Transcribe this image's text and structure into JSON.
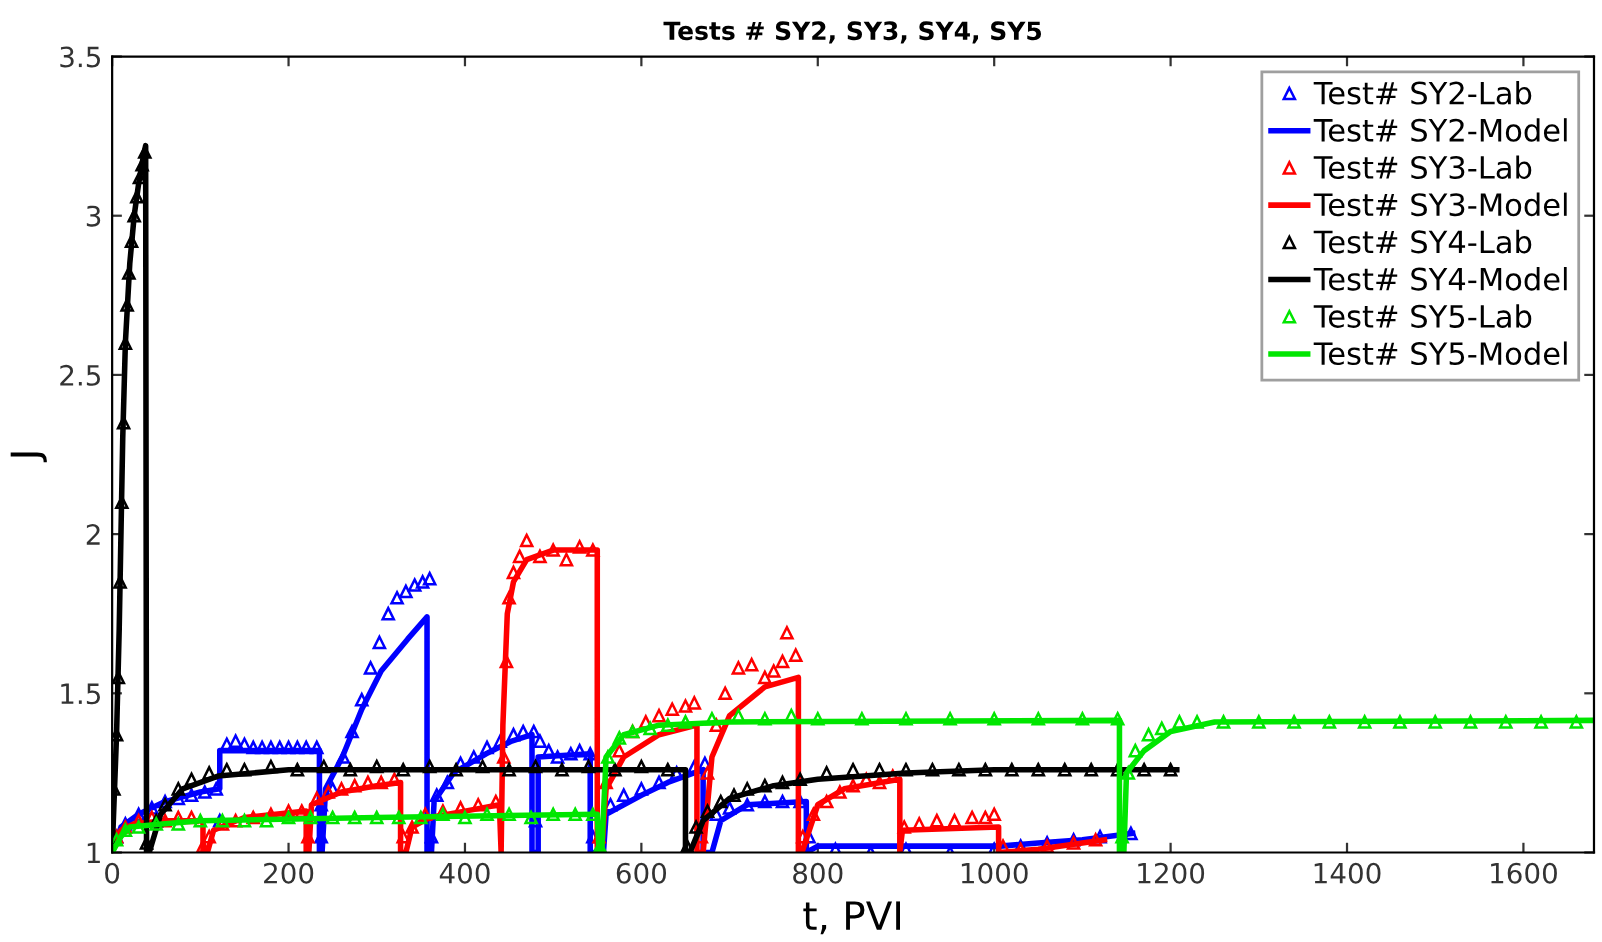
{
  "chart_data": {
    "type": "line",
    "title": "Tests # SY2, SY3, SY4, SY5",
    "xlabel": "t, PVI",
    "ylabel": "J",
    "xlim": [
      0,
      1680
    ],
    "xticks": [
      0,
      200,
      400,
      600,
      800,
      1000,
      1200,
      1400,
      1600
    ],
    "ylim": [
      1,
      3.5
    ],
    "yticks": [
      1,
      1.5,
      2,
      2.5,
      3,
      3.5
    ],
    "grid": false,
    "legend": "top right",
    "series": [
      {
        "name": "Test# SY2-Lab",
        "type": "scatter",
        "marker": "triangle",
        "color": "#0000ff",
        "x": [
          5,
          15,
          30,
          45,
          60,
          75,
          90,
          105,
          118,
          122,
          130,
          140,
          150,
          160,
          170,
          180,
          190,
          200,
          210,
          220,
          232,
          237,
          237,
          250,
          262,
          272,
          283,
          293,
          303,
          313,
          323,
          333,
          343,
          352,
          360,
          362,
          368,
          380,
          395,
          410,
          425,
          440,
          455,
          466,
          478,
          480,
          485,
          495,
          505,
          520,
          530,
          542,
          545,
          565,
          580,
          600,
          620,
          640,
          660,
          672,
          685,
          700,
          720,
          740,
          760,
          780,
          790,
          820,
          860,
          900,
          950,
          1000,
          1030,
          1060,
          1090,
          1120,
          1155
        ],
        "values": [
          1.05,
          1.09,
          1.12,
          1.14,
          1.16,
          1.17,
          1.18,
          1.19,
          1.2,
          1.1,
          1.34,
          1.35,
          1.34,
          1.33,
          1.33,
          1.33,
          1.33,
          1.33,
          1.33,
          1.33,
          1.33,
          1.05,
          1.15,
          1.2,
          1.3,
          1.38,
          1.48,
          1.58,
          1.66,
          1.75,
          1.8,
          1.82,
          1.84,
          1.85,
          1.86,
          1.05,
          1.18,
          1.22,
          1.28,
          1.3,
          1.33,
          1.35,
          1.37,
          1.38,
          1.38,
          1.1,
          1.35,
          1.32,
          1.3,
          1.31,
          1.32,
          1.31,
          1.05,
          1.15,
          1.18,
          1.2,
          1.22,
          1.25,
          1.27,
          1.28,
          1.12,
          1.14,
          1.15,
          1.16,
          1.16,
          1.16,
          1.05,
          1.01,
          1.0,
          1.01,
          1.0,
          1.01,
          1.02,
          1.03,
          1.04,
          1.05,
          1.06
        ]
      },
      {
        "name": "Test# SY2-Model",
        "marker": "none",
        "color": "#0000ff",
        "x": [
          0,
          10,
          30,
          60,
          100,
          122,
          122,
          235,
          235,
          238,
          242,
          261,
          283,
          305,
          335,
          357,
          357,
          362,
          365,
          387,
          424,
          453,
          476,
          476,
          483,
          483,
          542,
          542,
          557,
          560,
          600,
          630,
          670,
          670,
          680,
          690,
          720,
          787,
          787,
          800,
          1007,
          1050,
          1100,
          1157
        ],
        "values": [
          1.0,
          1.08,
          1.12,
          1.16,
          1.19,
          1.2,
          1.32,
          1.32,
          1.0,
          1.0,
          1.2,
          1.3,
          1.45,
          1.57,
          1.67,
          1.74,
          1.0,
          1.0,
          1.16,
          1.25,
          1.31,
          1.35,
          1.37,
          1.0,
          1.0,
          1.3,
          1.31,
          1.0,
          1.0,
          1.12,
          1.18,
          1.22,
          1.26,
          1.0,
          1.0,
          1.1,
          1.15,
          1.16,
          1.0,
          1.02,
          1.02,
          1.03,
          1.04,
          1.06
        ]
      },
      {
        "name": "Test# SY3-Lab",
        "type": "scatter",
        "marker": "triangle",
        "color": "#ff0000",
        "x": [
          5,
          15,
          30,
          45,
          60,
          75,
          90,
          103,
          110,
          125,
          140,
          160,
          180,
          200,
          215,
          222,
          232,
          245,
          260,
          275,
          290,
          305,
          320,
          330,
          340,
          355,
          375,
          395,
          415,
          435,
          444,
          447,
          450,
          455,
          462,
          470,
          485,
          500,
          515,
          530,
          545,
          552,
          560,
          575,
          590,
          605,
          620,
          635,
          650,
          660,
          668,
          675,
          685,
          695,
          710,
          725,
          740,
          750,
          760,
          765,
          775,
          783,
          795,
          810,
          825,
          840,
          855,
          870,
          885,
          898,
          915,
          935,
          955,
          975,
          990,
          1000,
          1010,
          1030,
          1060,
          1090,
          1115
        ],
        "values": [
          1.05,
          1.08,
          1.1,
          1.11,
          1.1,
          1.11,
          1.11,
          1.02,
          1.05,
          1.09,
          1.1,
          1.11,
          1.12,
          1.13,
          1.13,
          1.05,
          1.17,
          1.19,
          1.2,
          1.21,
          1.22,
          1.22,
          1.23,
          1.05,
          1.08,
          1.12,
          1.13,
          1.14,
          1.15,
          1.16,
          1.3,
          1.6,
          1.8,
          1.88,
          1.93,
          1.98,
          1.93,
          1.95,
          1.92,
          1.96,
          1.95,
          1.05,
          1.22,
          1.32,
          1.38,
          1.41,
          1.43,
          1.45,
          1.46,
          1.47,
          1.05,
          1.25,
          1.4,
          1.5,
          1.58,
          1.59,
          1.55,
          1.57,
          1.6,
          1.69,
          1.62,
          1.05,
          1.12,
          1.16,
          1.19,
          1.21,
          1.23,
          1.22,
          1.24,
          1.08,
          1.09,
          1.1,
          1.1,
          1.11,
          1.11,
          1.12,
          1.02,
          1.01,
          1.02,
          1.03,
          1.04
        ]
      },
      {
        "name": "Test# SY3-Model",
        "marker": "none",
        "color": "#ff0000",
        "x": [
          0,
          10,
          25,
          60,
          103,
          103,
          108,
          115,
          150,
          220,
          220,
          223,
          226,
          260,
          300,
          327,
          327,
          333,
          340,
          360,
          400,
          439,
          441,
          443,
          448,
          455,
          470,
          500,
          550,
          550,
          555,
          560,
          580,
          620,
          663,
          663,
          670,
          680,
          700,
          740,
          778,
          778,
          782,
          800,
          830,
          893,
          893,
          896,
          1005,
          1005,
          1050,
          1100,
          1125
        ],
        "values": [
          1.0,
          1.07,
          1.09,
          1.1,
          1.1,
          1.0,
          1.0,
          1.07,
          1.11,
          1.13,
          1.0,
          1.0,
          1.15,
          1.19,
          1.21,
          1.22,
          1.0,
          1.0,
          1.08,
          1.11,
          1.13,
          1.15,
          1.0,
          1.4,
          1.75,
          1.85,
          1.92,
          1.95,
          1.95,
          1.0,
          1.0,
          1.2,
          1.3,
          1.37,
          1.4,
          1.0,
          1.0,
          1.3,
          1.43,
          1.52,
          1.55,
          1.0,
          1.0,
          1.15,
          1.2,
          1.23,
          1.0,
          1.07,
          1.08,
          1.0,
          1.01,
          1.03,
          1.04
        ]
      },
      {
        "name": "Test# SY4-Lab",
        "type": "scatter",
        "marker": "triangle",
        "color": "#000000",
        "x": [
          2,
          5,
          7,
          9,
          11,
          13,
          15,
          17,
          19,
          22,
          25,
          28,
          31,
          34,
          37,
          39,
          50,
          60,
          75,
          90,
          110,
          130,
          150,
          180,
          210,
          240,
          270,
          300,
          330,
          360,
          390,
          420,
          450,
          480,
          510,
          540,
          570,
          600,
          630,
          652,
          662,
          675,
          690,
          705,
          720,
          740,
          760,
          780,
          810,
          840,
          870,
          900,
          930,
          960,
          990,
          1020,
          1050,
          1080,
          1110,
          1140,
          1170,
          1200
        ],
        "values": [
          1.2,
          1.37,
          1.55,
          1.85,
          2.1,
          2.35,
          2.6,
          2.72,
          2.82,
          2.92,
          3.0,
          3.06,
          3.12,
          3.16,
          3.2,
          1.03,
          1.1,
          1.15,
          1.2,
          1.23,
          1.25,
          1.26,
          1.26,
          1.27,
          1.26,
          1.27,
          1.26,
          1.27,
          1.26,
          1.27,
          1.26,
          1.27,
          1.26,
          1.27,
          1.26,
          1.27,
          1.26,
          1.27,
          1.26,
          1.02,
          1.08,
          1.13,
          1.16,
          1.18,
          1.2,
          1.21,
          1.22,
          1.23,
          1.25,
          1.26,
          1.26,
          1.26,
          1.26,
          1.26,
          1.26,
          1.26,
          1.26,
          1.26,
          1.26,
          1.26,
          1.26,
          1.26
        ]
      },
      {
        "name": "Test# SY4-Model",
        "marker": "none",
        "color": "#000000",
        "x": [
          0,
          5,
          8,
          12,
          15,
          20,
          25,
          30,
          35,
          38,
          39,
          42,
          55,
          80,
          120,
          200,
          650,
          650,
          655,
          670,
          700,
          750,
          800,
          900,
          1000,
          1207
        ],
        "values": [
          1.0,
          1.37,
          1.7,
          2.3,
          2.6,
          2.85,
          3.0,
          3.1,
          3.18,
          3.22,
          1.0,
          1.0,
          1.12,
          1.2,
          1.24,
          1.26,
          1.26,
          1.0,
          1.0,
          1.1,
          1.17,
          1.21,
          1.23,
          1.25,
          1.26,
          1.26
        ]
      },
      {
        "name": "Test# SY5-Lab",
        "type": "scatter",
        "marker": "triangle",
        "color": "#00e600",
        "x": [
          5,
          15,
          30,
          50,
          75,
          100,
          125,
          150,
          175,
          200,
          225,
          250,
          275,
          300,
          325,
          350,
          375,
          400,
          425,
          450,
          475,
          500,
          525,
          545,
          553,
          562,
          575,
          590,
          610,
          630,
          650,
          680,
          710,
          740,
          770,
          800,
          850,
          900,
          950,
          1000,
          1050,
          1100,
          1140,
          1145,
          1152,
          1160,
          1175,
          1190,
          1210,
          1230,
          1260,
          1300,
          1340,
          1380,
          1420,
          1460,
          1500,
          1540,
          1580,
          1620,
          1660
        ],
        "values": [
          1.04,
          1.07,
          1.08,
          1.09,
          1.09,
          1.1,
          1.1,
          1.1,
          1.1,
          1.11,
          1.11,
          1.11,
          1.11,
          1.11,
          1.11,
          1.11,
          1.12,
          1.11,
          1.12,
          1.12,
          1.11,
          1.12,
          1.12,
          1.12,
          1.02,
          1.3,
          1.36,
          1.38,
          1.39,
          1.4,
          1.41,
          1.42,
          1.43,
          1.42,
          1.43,
          1.42,
          1.42,
          1.42,
          1.42,
          1.42,
          1.42,
          1.42,
          1.42,
          1.05,
          1.25,
          1.32,
          1.37,
          1.39,
          1.41,
          1.41,
          1.41,
          1.41,
          1.41,
          1.41,
          1.41,
          1.41,
          1.41,
          1.41,
          1.41,
          1.41,
          1.41
        ]
      },
      {
        "name": "Test# SY5-Model",
        "marker": "none",
        "color": "#00e600",
        "x": [
          0,
          10,
          20,
          60,
          100,
          300,
          550,
          552,
          555,
          560,
          580,
          620,
          700,
          1142,
          1142,
          1147,
          1150,
          1170,
          1200,
          1250,
          1680
        ],
        "values": [
          1.0,
          1.05,
          1.08,
          1.09,
          1.1,
          1.11,
          1.12,
          1.0,
          1.0,
          1.3,
          1.37,
          1.4,
          1.41,
          1.415,
          1.0,
          1.0,
          1.25,
          1.32,
          1.38,
          1.41,
          1.415
        ]
      }
    ]
  }
}
